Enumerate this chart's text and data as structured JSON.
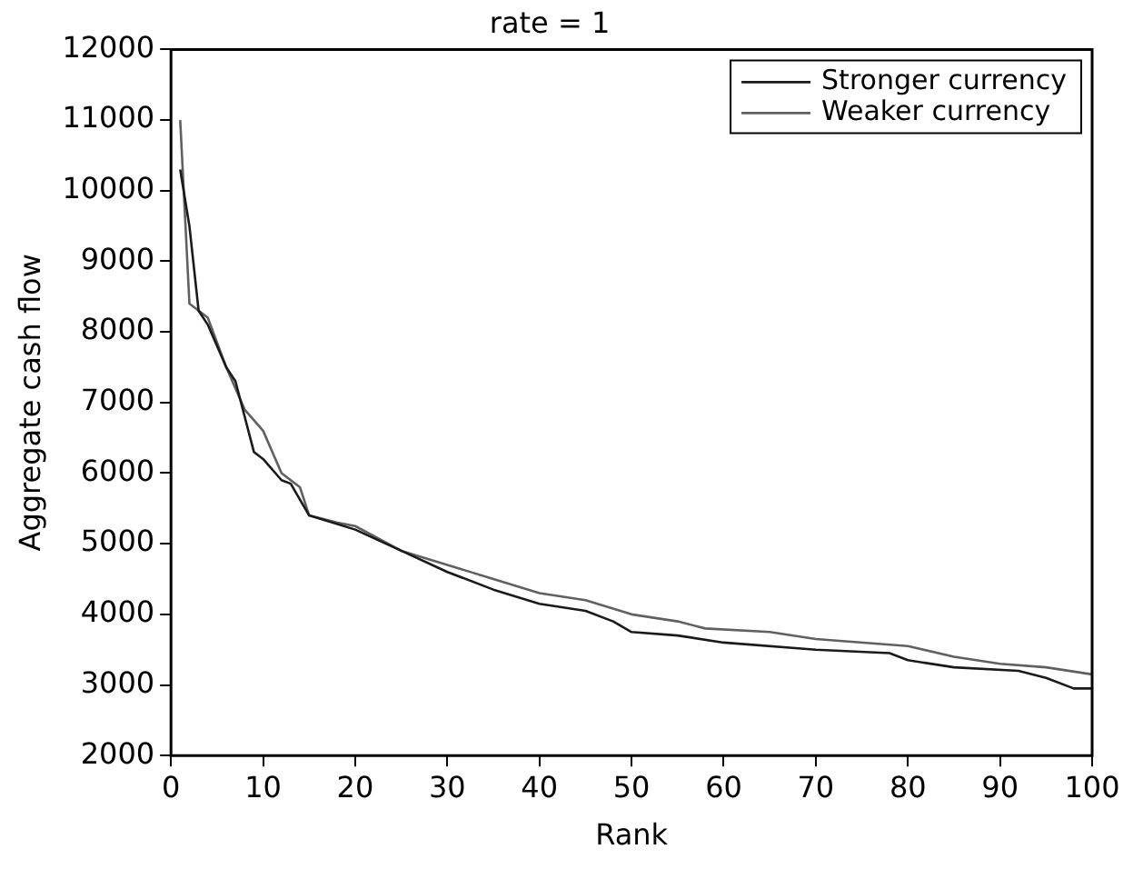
{
  "chart_data": {
    "type": "line",
    "title": "rate = 1",
    "xlabel": "Rank",
    "ylabel": "Aggregate cash flow",
    "xlim": [
      0,
      100
    ],
    "xticks": [
      0,
      10,
      20,
      30,
      40,
      50,
      60,
      70,
      80,
      90,
      100
    ],
    "ylim": [
      2000,
      12000
    ],
    "yticks": [
      2000,
      3000,
      4000,
      5000,
      6000,
      7000,
      8000,
      9000,
      10000,
      11000,
      12000
    ],
    "legend": "top right",
    "grid": false,
    "marker": "none",
    "line_style": "solid",
    "series": [
      {
        "name": "Stronger currency",
        "color": "#1a1a1a",
        "x": [
          1,
          2,
          3,
          4,
          6,
          7,
          9,
          10,
          12,
          13,
          15,
          20,
          25,
          30,
          35,
          40,
          45,
          48,
          50,
          55,
          60,
          70,
          78,
          80,
          85,
          92,
          95,
          98,
          100
        ],
        "values": [
          10300,
          9500,
          8300,
          8100,
          7500,
          7300,
          6300,
          6200,
          5900,
          5850,
          5400,
          5200,
          4900,
          4600,
          4350,
          4150,
          4050,
          3900,
          3750,
          3700,
          3600,
          3500,
          3450,
          3350,
          3250,
          3200,
          3100,
          2950,
          2950
        ]
      },
      {
        "name": "Weaker currency",
        "color": "#606060",
        "x": [
          1,
          2,
          4,
          6,
          8,
          10,
          12,
          14,
          15,
          18,
          20,
          25,
          30,
          35,
          40,
          45,
          50,
          55,
          58,
          65,
          70,
          80,
          85,
          90,
          95,
          100
        ],
        "values": [
          11000,
          8400,
          8200,
          7500,
          6900,
          6600,
          6000,
          5800,
          5400,
          5300,
          5250,
          4900,
          4700,
          4500,
          4300,
          4200,
          4000,
          3900,
          3800,
          3750,
          3650,
          3550,
          3400,
          3300,
          3250,
          3150
        ]
      }
    ]
  }
}
